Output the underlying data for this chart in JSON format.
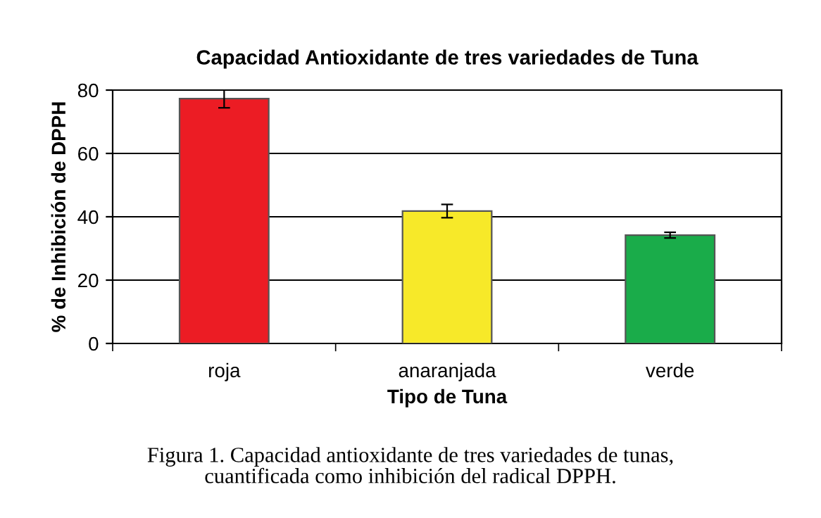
{
  "chart_data": {
    "type": "bar",
    "title": "Capacidad Antioxidante de tres variedades de Tuna",
    "xlabel": "Tipo de Tuna",
    "ylabel": "% de Inhibición de DPPH",
    "categories": [
      "roja",
      "anaranjada",
      "verde"
    ],
    "values": [
      77.3,
      41.8,
      34.2
    ],
    "errors": [
      2.9,
      2.1,
      0.9
    ],
    "colors": [
      "#ec1c24",
      "#f7e929",
      "#1aac4a"
    ],
    "ylim": [
      0,
      80
    ],
    "yticks": [
      0,
      20,
      40,
      60,
      80
    ],
    "grid": "y",
    "annotations": [
      "Figura 1. Capacidad antioxidante de tres variedades de tunas,\ncuantificada como inhibición del radical DPPH."
    ]
  }
}
